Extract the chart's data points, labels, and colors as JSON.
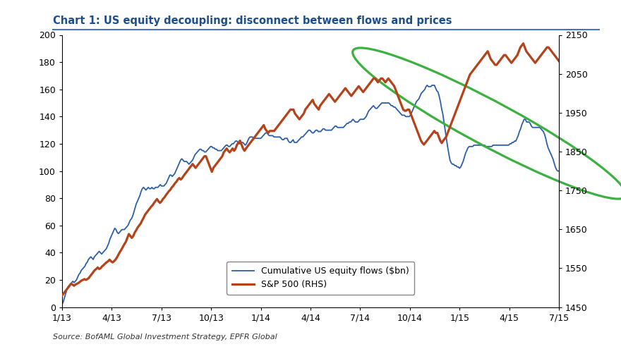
{
  "title": "Chart 1: US equity decoupling: disconnect between flows and prices",
  "title_color": "#1F4E8C",
  "source_text": "Source: BofAML Global Investment Strategy, EPFR Global",
  "left_ylim": [
    0,
    200
  ],
  "right_ylim": [
    1450,
    2150
  ],
  "left_yticks": [
    0,
    20,
    40,
    60,
    80,
    100,
    120,
    140,
    160,
    180,
    200
  ],
  "right_yticks": [
    1450,
    1550,
    1650,
    1750,
    1850,
    1950,
    2050,
    2150
  ],
  "xtick_labels": [
    "1/13",
    "4/13",
    "7/13",
    "10/13",
    "1/14",
    "4/14",
    "7/14",
    "10/14",
    "1/15",
    "4/15",
    "7/15"
  ],
  "flows_color": "#2D5FA8",
  "sp500_color": "#B5431A",
  "flows_label": "Cumulative US equity flows ($bn)",
  "sp500_label": "S&P 500 (RHS)",
  "ellipse_color": "#3CB040",
  "background_color": "#FFFFFF",
  "flows_data": [
    2,
    4,
    7,
    10,
    13,
    15,
    16,
    17,
    18,
    19,
    18,
    19,
    20,
    22,
    24,
    25,
    27,
    28,
    29,
    30,
    32,
    33,
    35,
    36,
    37,
    36,
    35,
    37,
    38,
    39,
    40,
    41,
    40,
    39,
    40,
    41,
    42,
    43,
    45,
    47,
    50,
    52,
    54,
    56,
    58,
    57,
    55,
    54,
    55,
    56,
    57,
    57,
    57,
    58,
    59,
    60,
    62,
    64,
    65,
    67,
    70,
    73,
    76,
    78,
    80,
    82,
    85,
    87,
    88,
    87,
    86,
    87,
    88,
    87,
    87,
    88,
    87,
    87,
    88,
    88,
    88,
    89,
    90,
    89,
    89,
    89,
    90,
    91,
    93,
    95,
    97,
    97,
    96,
    97,
    98,
    100,
    102,
    104,
    106,
    108,
    109,
    108,
    107,
    107,
    107,
    106,
    105,
    106,
    107,
    108,
    110,
    112,
    113,
    114,
    115,
    116,
    116,
    115,
    115,
    114,
    114,
    115,
    116,
    117,
    118,
    118,
    117,
    117,
    116,
    116,
    115,
    115,
    115,
    115,
    116,
    117,
    118,
    119,
    119,
    118,
    118,
    119,
    120,
    120,
    121,
    122,
    122,
    121,
    120,
    120,
    121,
    121,
    120,
    119,
    120,
    122,
    124,
    125,
    125,
    125,
    124,
    124,
    124,
    124,
    124,
    124,
    124,
    125,
    126,
    127,
    128,
    128,
    127,
    126,
    126,
    126,
    126,
    125,
    125,
    125,
    125,
    125,
    125,
    124,
    123,
    123,
    124,
    124,
    124,
    122,
    121,
    121,
    122,
    123,
    121,
    121,
    121,
    122,
    123,
    124,
    125,
    125,
    126,
    127,
    128,
    129,
    130,
    130,
    129,
    128,
    128,
    129,
    130,
    130,
    129,
    129,
    129,
    130,
    131,
    131,
    130,
    130,
    130,
    130,
    130,
    130,
    131,
    132,
    133,
    133,
    132,
    132,
    132,
    132,
    132,
    132,
    133,
    134,
    135,
    135,
    136,
    136,
    137,
    138,
    137,
    136,
    136,
    136,
    137,
    138,
    138,
    138,
    138,
    139,
    140,
    142,
    144,
    145,
    146,
    147,
    148,
    147,
    146,
    146,
    147,
    148,
    149,
    150,
    150,
    150,
    150,
    150,
    150,
    150,
    149,
    148,
    148,
    147,
    147,
    146,
    145,
    144,
    143,
    142,
    141,
    141,
    141,
    140,
    140,
    140,
    140,
    141,
    143,
    145,
    147,
    149,
    151,
    152,
    153,
    155,
    157,
    158,
    159,
    160,
    162,
    163,
    162,
    162,
    162,
    163,
    163,
    163,
    161,
    159,
    158,
    155,
    151,
    146,
    142,
    136,
    130,
    124,
    118,
    113,
    108,
    106,
    105,
    105,
    104,
    104,
    103,
    103,
    102,
    103,
    105,
    107,
    110,
    113,
    115,
    117,
    118,
    118,
    118,
    118,
    119,
    119,
    119,
    119,
    119,
    119,
    119,
    119,
    119,
    119,
    118,
    118,
    118,
    118,
    118,
    118,
    119,
    119,
    119,
    119,
    119,
    119,
    119,
    119,
    119,
    119,
    119,
    119,
    119,
    119,
    120,
    120,
    121,
    121,
    122,
    122,
    124,
    126,
    129,
    131,
    134,
    136,
    138,
    138,
    136,
    136,
    136,
    135,
    133,
    132,
    132,
    132,
    132,
    132,
    132,
    132,
    131,
    130,
    129,
    127,
    124,
    120,
    117,
    115,
    113,
    111,
    109,
    106,
    103,
    101,
    100,
    100
  ],
  "sp500_data": [
    1480,
    1485,
    1490,
    1495,
    1500,
    1505,
    1510,
    1508,
    1505,
    1508,
    1510,
    1512,
    1515,
    1518,
    1520,
    1522,
    1520,
    1522,
    1525,
    1530,
    1535,
    1540,
    1545,
    1548,
    1552,
    1548,
    1550,
    1555,
    1558,
    1562,
    1565,
    1568,
    1572,
    1568,
    1565,
    1568,
    1572,
    1578,
    1585,
    1592,
    1598,
    1605,
    1612,
    1618,
    1628,
    1638,
    1633,
    1628,
    1633,
    1642,
    1648,
    1655,
    1660,
    1665,
    1673,
    1680,
    1688,
    1693,
    1698,
    1703,
    1708,
    1712,
    1718,
    1723,
    1728,
    1722,
    1718,
    1722,
    1728,
    1732,
    1738,
    1743,
    1748,
    1752,
    1758,
    1762,
    1768,
    1772,
    1778,
    1782,
    1778,
    1782,
    1788,
    1793,
    1798,
    1803,
    1808,
    1813,
    1818,
    1813,
    1808,
    1813,
    1818,
    1823,
    1828,
    1833,
    1838,
    1838,
    1828,
    1818,
    1808,
    1798,
    1808,
    1813,
    1818,
    1823,
    1828,
    1833,
    1838,
    1848,
    1853,
    1858,
    1852,
    1848,
    1853,
    1858,
    1852,
    1858,
    1868,
    1873,
    1878,
    1868,
    1858,
    1852,
    1858,
    1863,
    1868,
    1873,
    1878,
    1883,
    1888,
    1893,
    1898,
    1903,
    1908,
    1913,
    1918,
    1908,
    1903,
    1898,
    1903,
    1903,
    1903,
    1903,
    1908,
    1913,
    1918,
    1923,
    1928,
    1933,
    1938,
    1943,
    1948,
    1953,
    1958,
    1958,
    1958,
    1948,
    1943,
    1938,
    1933,
    1938,
    1943,
    1948,
    1958,
    1963,
    1968,
    1973,
    1978,
    1983,
    1973,
    1968,
    1963,
    1958,
    1968,
    1973,
    1978,
    1983,
    1988,
    1993,
    1998,
    1993,
    1988,
    1983,
    1978,
    1983,
    1988,
    1993,
    1998,
    2003,
    2008,
    2013,
    2008,
    2003,
    1998,
    1993,
    1998,
    2003,
    2008,
    2013,
    2018,
    2013,
    2008,
    2003,
    2008,
    2013,
    2018,
    2023,
    2028,
    2033,
    2038,
    2038,
    2033,
    2028,
    2033,
    2038,
    2038,
    2033,
    2028,
    2033,
    2038,
    2033,
    2028,
    2023,
    2018,
    2008,
    1998,
    1988,
    1978,
    1968,
    1958,
    1955,
    1955,
    1958,
    1958,
    1948,
    1938,
    1928,
    1918,
    1908,
    1898,
    1888,
    1878,
    1872,
    1868,
    1873,
    1878,
    1883,
    1888,
    1893,
    1898,
    1903,
    1898,
    1898,
    1888,
    1878,
    1872,
    1878,
    1883,
    1888,
    1898,
    1908,
    1918,
    1928,
    1938,
    1948,
    1958,
    1968,
    1978,
    1988,
    1998,
    2008,
    2018,
    2028,
    2038,
    2048,
    2053,
    2058,
    2063,
    2068,
    2073,
    2078,
    2083,
    2088,
    2093,
    2098,
    2103,
    2108,
    2098,
    2088,
    2083,
    2078,
    2073,
    2073,
    2078,
    2083,
    2088,
    2093,
    2098,
    2098,
    2093,
    2088,
    2083,
    2078,
    2083,
    2088,
    2093,
    2098,
    2108,
    2118,
    2123,
    2128,
    2118,
    2108,
    2103,
    2098,
    2093,
    2088,
    2083,
    2078,
    2083,
    2088,
    2093,
    2098,
    2103,
    2108,
    2113,
    2118,
    2118,
    2113,
    2108,
    2103,
    2098,
    2093,
    2088,
    2083
  ]
}
